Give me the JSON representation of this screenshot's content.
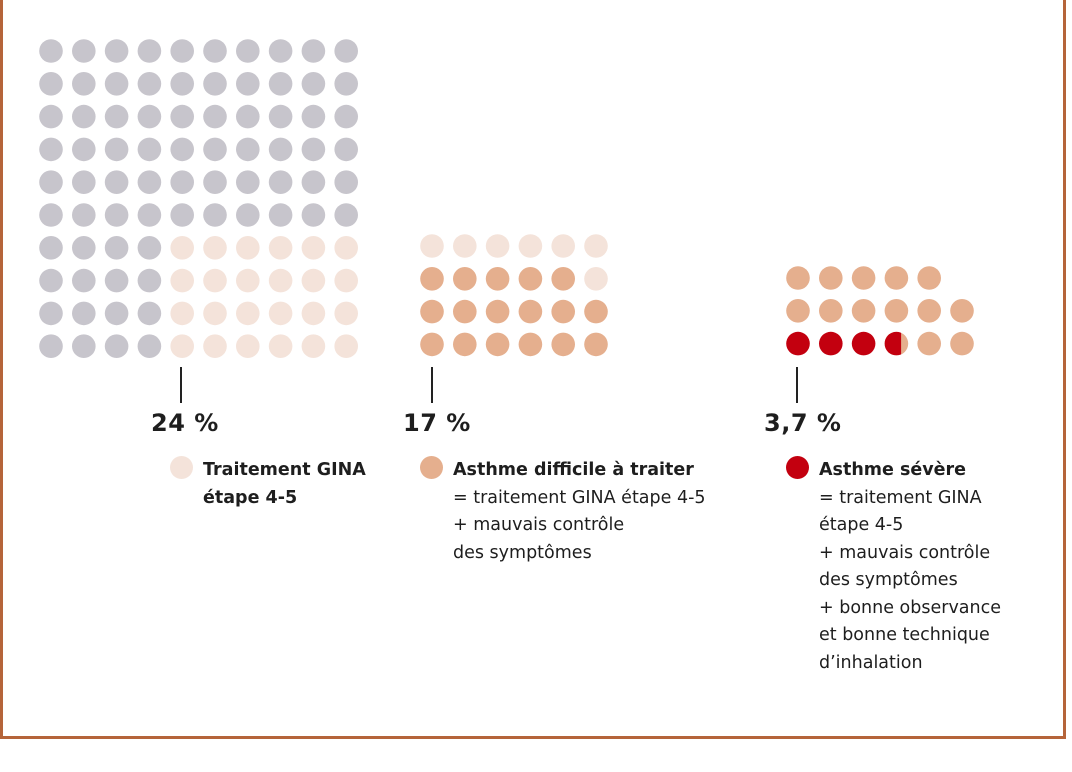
{
  "chart_data": {
    "type": "waffle",
    "colors": {
      "background_dot": "#c7c5cc",
      "gina_4_5": "#f4e3da",
      "difficult": "#e5af8e",
      "severe": "#c3000f"
    },
    "groups": [
      {
        "percent_label": "24 %",
        "value": 24,
        "legend_title": "Traitement GINA étape 4-5",
        "legend_desc": "",
        "legend_color": "#f4e3da"
      },
      {
        "percent_label": "17 %",
        "value": 17,
        "legend_title": "Asthme difficile à traiter",
        "legend_desc": "= traitement GINA étape 4-5\n+ mauvais contrôle\ndes symptômes",
        "legend_color": "#e5af8e"
      },
      {
        "percent_label": "3,7 %",
        "value": 3.7,
        "legend_title": "Asthme sévère",
        "legend_desc": "= traitement GINA\nétape 4-5\n+ mauvais contrôle\ndes symptômes\n+ bonne observance\net bonne technique\nd’inhalation",
        "legend_color": "#c3000f"
      }
    ]
  }
}
